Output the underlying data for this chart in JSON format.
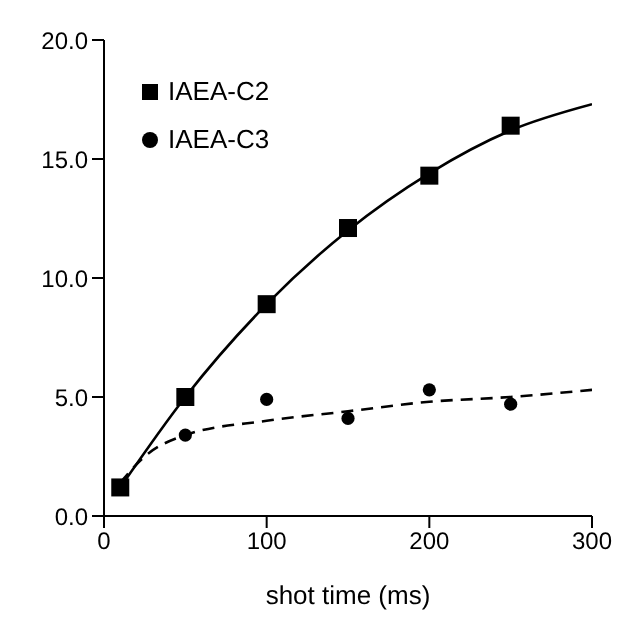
{
  "chart_data": {
    "type": "scatter",
    "xlabel": "shot time (ms)",
    "xlim": [
      0,
      300
    ],
    "xticks": [
      0,
      100,
      200,
      300
    ],
    "ylim": [
      0,
      20
    ],
    "yticks": [
      {
        "value": 0,
        "label": "0.0"
      },
      {
        "value": 5,
        "label": "5.0"
      },
      {
        "value": 10,
        "label": "10.0"
      },
      {
        "value": 15,
        "label": "15.0"
      },
      {
        "value": 20,
        "label": "20.0"
      }
    ],
    "grid": false,
    "legend": "top left",
    "series": [
      {
        "name": "IAEA-C2",
        "marker": "square",
        "color": "#000000",
        "x": [
          10,
          50,
          100,
          150,
          200,
          250
        ],
        "values": [
          1.2,
          5.0,
          8.9,
          12.1,
          14.3,
          16.4
        ]
      },
      {
        "name": "IAEA-C3",
        "marker": "circle",
        "color": "#000000",
        "x": [
          50,
          100,
          150,
          200,
          250
        ],
        "values": [
          3.4,
          4.9,
          4.1,
          5.3,
          4.7
        ]
      },
      {
        "type": "line",
        "marker": "none",
        "line_style": "solid",
        "color": "#000000",
        "x": [
          10,
          50,
          100,
          150,
          200,
          250,
          300
        ],
        "values": [
          1.2,
          5.0,
          8.9,
          12.0,
          14.4,
          16.2,
          17.3
        ]
      },
      {
        "type": "line",
        "marker": "none",
        "line_style": "dashed",
        "color": "#000000",
        "x": [
          10,
          25,
          50,
          100,
          150,
          200,
          250,
          300
        ],
        "values": [
          1.4,
          2.5,
          3.4,
          4.0,
          4.4,
          4.8,
          5.0,
          5.3
        ]
      }
    ]
  }
}
